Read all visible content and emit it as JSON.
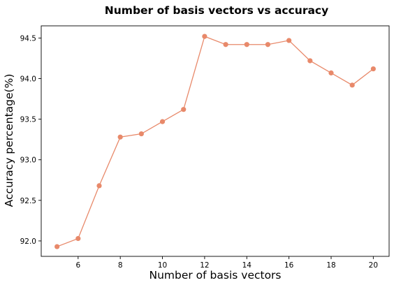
{
  "chart_data": {
    "type": "line",
    "title": "Number of basis vectors vs accuracy",
    "xlabel": "Number of basis vectors",
    "ylabel": "Accuracy percentage(%)",
    "xlim": [
      4.25,
      20.75
    ],
    "ylim": [
      91.81,
      94.65
    ],
    "xticks": [
      6,
      8,
      10,
      12,
      14,
      16,
      18,
      20
    ],
    "yticks": [
      92.0,
      92.5,
      93.0,
      93.5,
      94.0,
      94.5
    ],
    "grid": false,
    "series": [
      {
        "color": "#e8896a",
        "marker": "circle",
        "x": [
          5,
          6,
          7,
          8,
          9,
          10,
          11,
          12,
          13,
          14,
          15,
          16,
          17,
          18,
          19,
          20
        ],
        "y": [
          91.93,
          92.03,
          92.68,
          93.28,
          93.32,
          93.47,
          93.62,
          94.52,
          94.42,
          94.42,
          94.42,
          94.47,
          94.22,
          94.07,
          93.92,
          94.12
        ]
      }
    ]
  }
}
